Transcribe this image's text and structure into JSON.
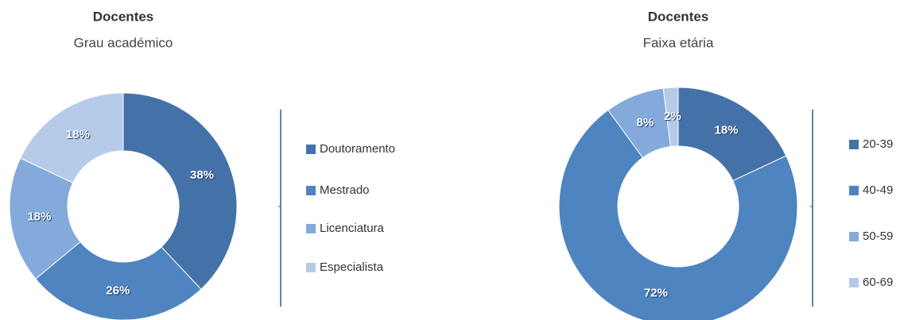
{
  "chart_data": [
    {
      "type": "donut",
      "title": "Docentes",
      "subtitle": "Grau académico",
      "categories": [
        "Doutoramento",
        "Mestrado",
        "Licenciatura",
        "Especialista"
      ],
      "values": [
        38,
        26,
        18,
        18
      ],
      "value_labels": [
        "38%",
        "26%",
        "18%",
        "18%"
      ],
      "colors": [
        "#4472a8",
        "#4e84c0",
        "#84aadb",
        "#b6cbe9"
      ]
    },
    {
      "type": "donut",
      "title": "Docentes",
      "subtitle": "Faixa etária",
      "categories": [
        "20-39",
        "40-49",
        "50-59",
        "60-69"
      ],
      "values": [
        18,
        72,
        8,
        2
      ],
      "value_labels": [
        "18%",
        "72%",
        "8%",
        "2%"
      ],
      "colors": [
        "#4472a8",
        "#4e84c0",
        "#84aadb",
        "#b6cbe9"
      ]
    }
  ]
}
